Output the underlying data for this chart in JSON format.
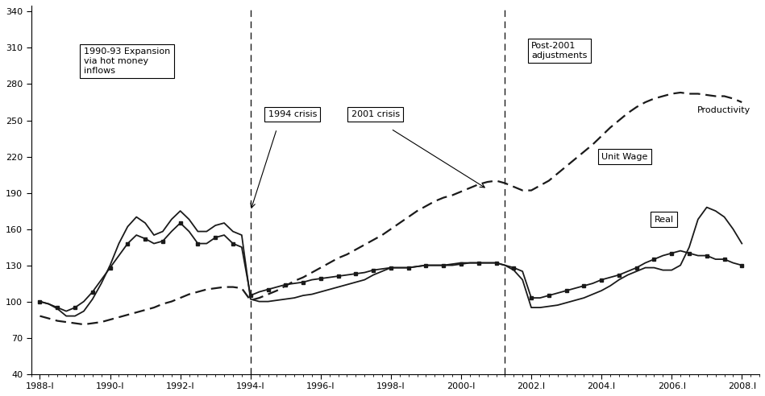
{
  "ylim": [
    40,
    345
  ],
  "yticks": [
    40,
    70,
    100,
    130,
    160,
    190,
    220,
    250,
    280,
    310,
    340
  ],
  "xtick_labels": [
    "1988-I",
    "1990-I",
    "1992-I",
    "1994-I",
    "1996-I",
    "1998-I",
    "2000-I",
    "2002.I",
    "2004.I",
    "2006.I",
    "2008.I"
  ],
  "xtick_positions": [
    0,
    8,
    16,
    24,
    32,
    40,
    48,
    56,
    64,
    72,
    80
  ],
  "vlines": [
    24,
    53
  ],
  "background_color": "#ffffff",
  "line_color": "#1a1a1a",
  "productivity": [
    88,
    86,
    84,
    83,
    82,
    81,
    82,
    83,
    85,
    87,
    89,
    91,
    93,
    95,
    98,
    100,
    103,
    106,
    108,
    110,
    111,
    112,
    112,
    111,
    101,
    103,
    106,
    109,
    113,
    117,
    120,
    124,
    128,
    132,
    136,
    139,
    143,
    147,
    151,
    155,
    160,
    165,
    170,
    175,
    179,
    183,
    186,
    188,
    191,
    194,
    197,
    199,
    200,
    198,
    195,
    192,
    192,
    196,
    200,
    206,
    212,
    218,
    224,
    230,
    237,
    244,
    250,
    256,
    261,
    265,
    268,
    270,
    272,
    273,
    272,
    272,
    271,
    270,
    270,
    268,
    265
  ],
  "unit_wage": [
    100,
    98,
    95,
    92,
    95,
    100,
    108,
    118,
    128,
    138,
    148,
    155,
    152,
    148,
    150,
    158,
    165,
    158,
    148,
    148,
    153,
    155,
    148,
    145,
    105,
    108,
    110,
    112,
    114,
    115,
    116,
    118,
    119,
    120,
    121,
    122,
    123,
    124,
    126,
    127,
    128,
    128,
    128,
    129,
    130,
    130,
    130,
    130,
    131,
    132,
    132,
    132,
    132,
    130,
    128,
    125,
    103,
    103,
    105,
    107,
    109,
    111,
    113,
    115,
    118,
    120,
    122,
    125,
    128,
    132,
    135,
    138,
    140,
    142,
    140,
    138,
    138,
    135,
    135,
    132,
    130
  ],
  "real_wage": [
    100,
    98,
    94,
    88,
    88,
    92,
    102,
    115,
    130,
    148,
    162,
    170,
    165,
    155,
    158,
    168,
    175,
    168,
    158,
    158,
    163,
    165,
    158,
    155,
    102,
    100,
    100,
    101,
    102,
    103,
    105,
    106,
    108,
    110,
    112,
    114,
    116,
    118,
    122,
    125,
    128,
    128,
    128,
    129,
    130,
    130,
    130,
    131,
    132,
    132,
    132,
    132,
    132,
    130,
    126,
    118,
    95,
    95,
    96,
    97,
    99,
    101,
    103,
    106,
    109,
    113,
    118,
    122,
    125,
    128,
    128,
    126,
    126,
    130,
    145,
    168,
    178,
    175,
    170,
    160,
    148
  ]
}
